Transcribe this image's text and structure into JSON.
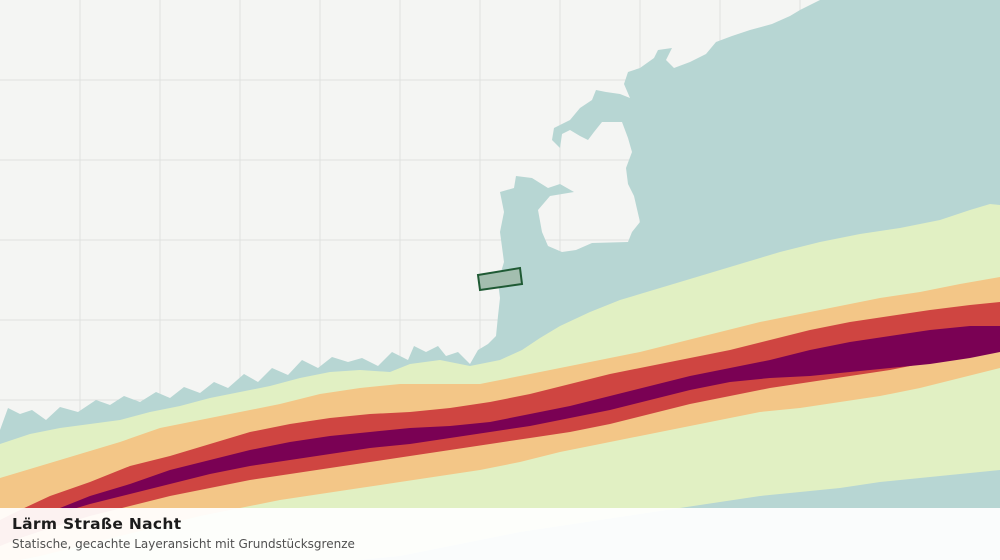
{
  "map": {
    "title": "Lärm Straße Nacht",
    "subtitle": "Statische, gecachte Layeransicht mit Grundstücksgrenze",
    "colors": {
      "background": "#f4f5f3",
      "grid": "#dfe1df",
      "noise_low": "#b7d6d3",
      "noise_medium_low": "#e1f0c3",
      "noise_medium": "#f3c687",
      "noise_high": "#cf4541",
      "noise_very_high": "#7a0154",
      "parcel_fill": "#a3beaf",
      "parcel_stroke": "#1f5a34"
    }
  }
}
